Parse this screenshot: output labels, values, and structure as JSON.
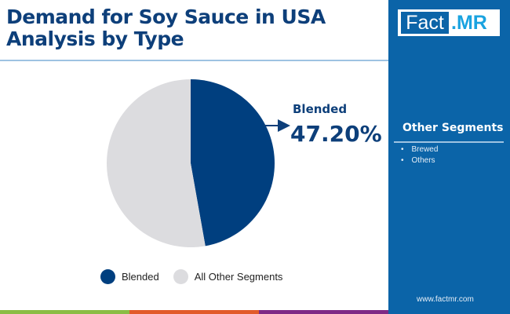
{
  "header": {
    "title_line1": "Demand for Soy Sauce in USA",
    "title_line2": "Analysis by Type"
  },
  "brand": {
    "logo_fact": "Fact",
    "logo_mr": ".MR",
    "url": "www.factmr.com",
    "panel_color": "#0b64a8"
  },
  "sidebar": {
    "title": "Other Segments",
    "items": [
      "Brewed",
      "Others"
    ]
  },
  "callout": {
    "label": "Blended",
    "value": "47.20%"
  },
  "chart_data": {
    "type": "pie",
    "slices": [
      {
        "name": "Blended",
        "value": 47.2,
        "color": "#003f7f"
      },
      {
        "name": "All Other Segments",
        "value": 52.8,
        "color": "#dcdcdf"
      }
    ],
    "legend_position": "bottom"
  },
  "footer_colors": [
    "#8bbd45",
    "#e25b2a",
    "#7e2a86"
  ]
}
